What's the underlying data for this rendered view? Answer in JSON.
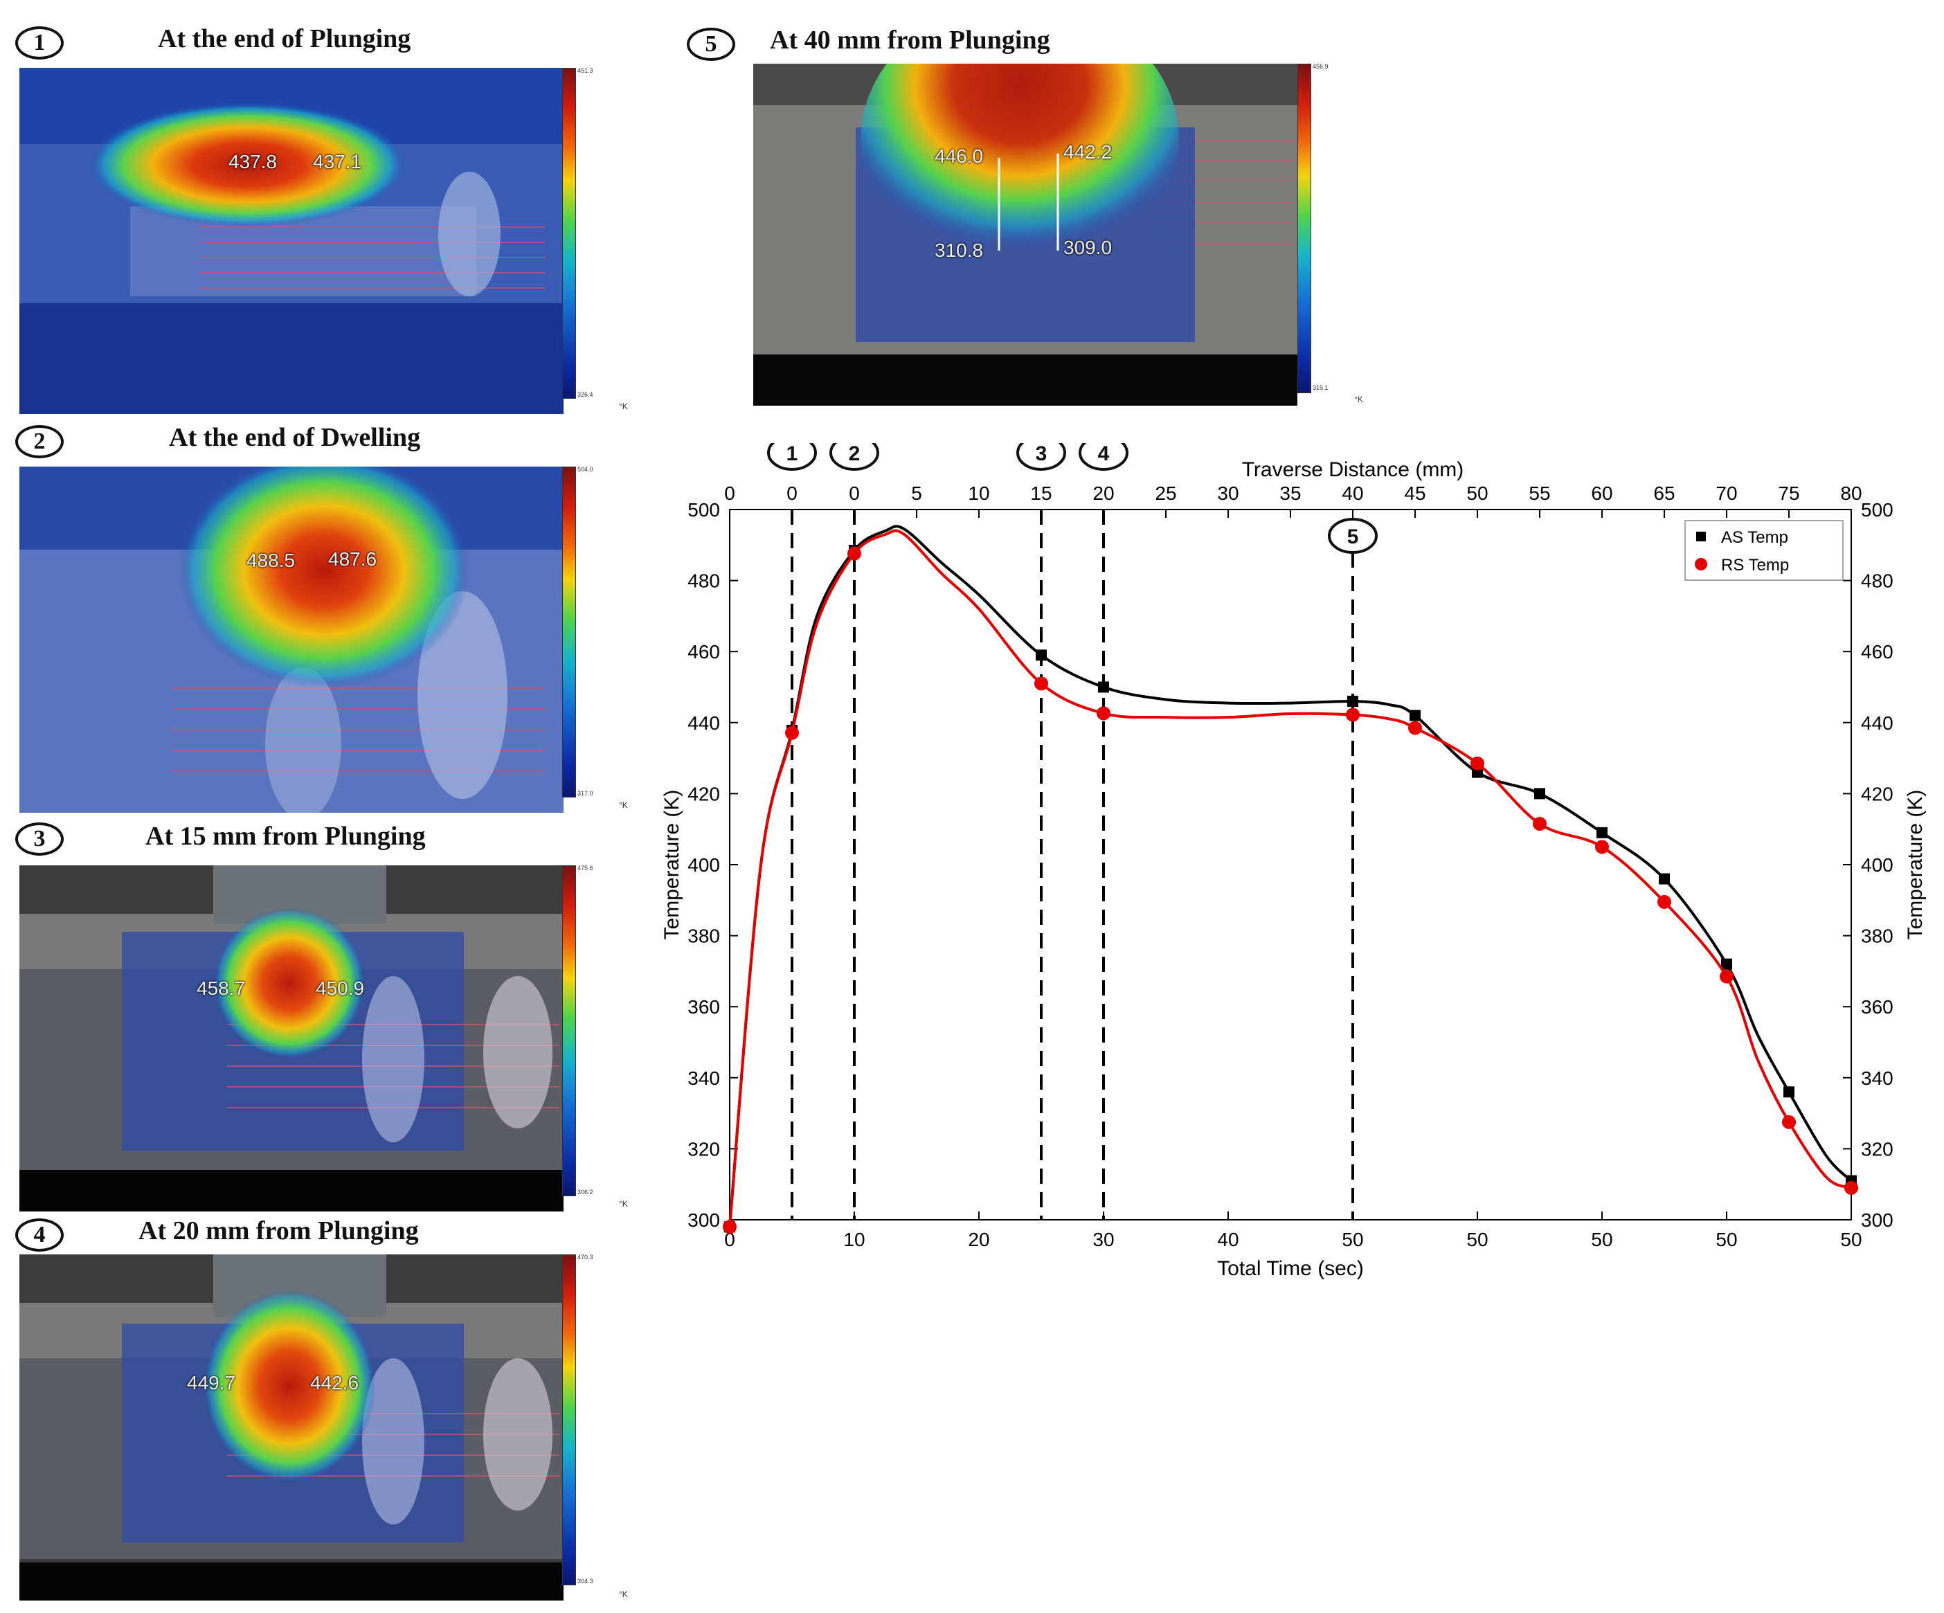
{
  "panels": [
    {
      "num": "1",
      "title": "At the end of Plunging",
      "readings": [
        "437.8",
        "437.1"
      ],
      "scale_max": "451.3",
      "scale_min": "326.4"
    },
    {
      "num": "2",
      "title": "At the end of Dwelling",
      "readings": [
        "488.5",
        "487.6"
      ],
      "scale_max": "504.0",
      "scale_min": "317.0"
    },
    {
      "num": "3",
      "title": "At 15 mm from Plunging",
      "readings": [
        "458.7",
        "450.9"
      ],
      "scale_max": "475.6",
      "scale_min": "306.2"
    },
    {
      "num": "4",
      "title": "At 20 mm from Plunging",
      "readings": [
        "449.7",
        "442.6"
      ],
      "scale_max": "470.3",
      "scale_min": "304.3"
    },
    {
      "num": "5",
      "title": "At 40 mm from Plunging",
      "readings": [
        "446.0",
        "442.2",
        "310.8",
        "309.0"
      ],
      "scale_max": "456.9",
      "scale_min": "315.1"
    }
  ],
  "unit_label": "°K",
  "colors": {
    "as": "#000000",
    "rs": "#e60000"
  },
  "chart_data": {
    "type": "line",
    "title": "",
    "xlabel": "Total Time (sec)",
    "ylabel": "Temperature (K)",
    "ylabel_right": "Temperature (K)",
    "x2label": "Traverse Distance (mm)",
    "ylim": [
      300,
      500
    ],
    "y_ticks": [
      300,
      320,
      340,
      360,
      380,
      400,
      420,
      440,
      460,
      480,
      500
    ],
    "bottom_ticks": [
      "0",
      "10",
      "20",
      "30",
      "40",
      "50",
      "50",
      "50",
      "50",
      "50"
    ],
    "top_ticks": [
      "0",
      "0",
      "0",
      "5",
      "10",
      "15",
      "20",
      "25",
      "30",
      "35",
      "40",
      "45",
      "50",
      "55",
      "60",
      "65",
      "70",
      "75",
      "80"
    ],
    "legend_position": "top-right",
    "series": [
      {
        "name": "AS Temp",
        "marker": "square",
        "color": "#000000",
        "index": [
          0,
          5,
          10,
          25,
          30,
          50,
          55,
          60,
          65,
          70,
          75,
          80,
          85,
          90
        ],
        "values": [
          298,
          437.8,
          488.5,
          459,
          450,
          446,
          442,
          426,
          420,
          409,
          396,
          372,
          336,
          311
        ],
        "curve": [
          [
            0,
            298
          ],
          [
            2.5,
            400
          ],
          [
            5,
            437.8
          ],
          [
            7,
            470
          ],
          [
            10,
            488.5
          ],
          [
            12.5,
            494
          ],
          [
            14,
            494.5
          ],
          [
            17,
            485
          ],
          [
            20,
            476
          ],
          [
            25,
            459
          ],
          [
            30,
            450
          ],
          [
            35,
            446.5
          ],
          [
            40,
            445.5
          ],
          [
            45,
            445.5
          ],
          [
            50,
            446
          ],
          [
            53,
            445
          ],
          [
            55,
            442
          ],
          [
            60,
            426
          ],
          [
            65,
            420
          ],
          [
            70,
            409
          ],
          [
            75,
            396
          ],
          [
            80,
            372
          ],
          [
            82.5,
            352
          ],
          [
            85,
            336
          ],
          [
            88,
            318
          ],
          [
            90,
            311
          ]
        ]
      },
      {
        "name": "RS Temp",
        "marker": "circle",
        "color": "#e60000",
        "index": [
          0,
          5,
          10,
          25,
          30,
          50,
          55,
          60,
          65,
          70,
          75,
          80,
          85,
          90
        ],
        "values": [
          298,
          437.1,
          487.6,
          451,
          442.6,
          442.2,
          438.5,
          428.5,
          411.5,
          405,
          389.5,
          368.5,
          327.5,
          309
        ],
        "curve": [
          [
            0,
            298
          ],
          [
            2.5,
            400
          ],
          [
            5,
            437.1
          ],
          [
            7,
            468
          ],
          [
            10,
            487.6
          ],
          [
            12.5,
            493
          ],
          [
            14,
            493
          ],
          [
            17,
            482
          ],
          [
            20,
            472
          ],
          [
            25,
            451
          ],
          [
            30,
            442.6
          ],
          [
            35,
            441.5
          ],
          [
            40,
            441.5
          ],
          [
            45,
            442.5
          ],
          [
            50,
            442.2
          ],
          [
            53,
            441
          ],
          [
            55,
            438.5
          ],
          [
            60,
            428.5
          ],
          [
            65,
            411.5
          ],
          [
            70,
            405
          ],
          [
            75,
            389.5
          ],
          [
            80,
            368.5
          ],
          [
            82.5,
            345
          ],
          [
            85,
            327.5
          ],
          [
            88,
            312
          ],
          [
            90,
            309
          ]
        ]
      }
    ],
    "markers": [
      {
        "label": "1",
        "index": 5
      },
      {
        "label": "2",
        "index": 10
      },
      {
        "label": "3",
        "index": 25
      },
      {
        "label": "4",
        "index": 30
      },
      {
        "label": "5",
        "index": 50
      }
    ]
  }
}
